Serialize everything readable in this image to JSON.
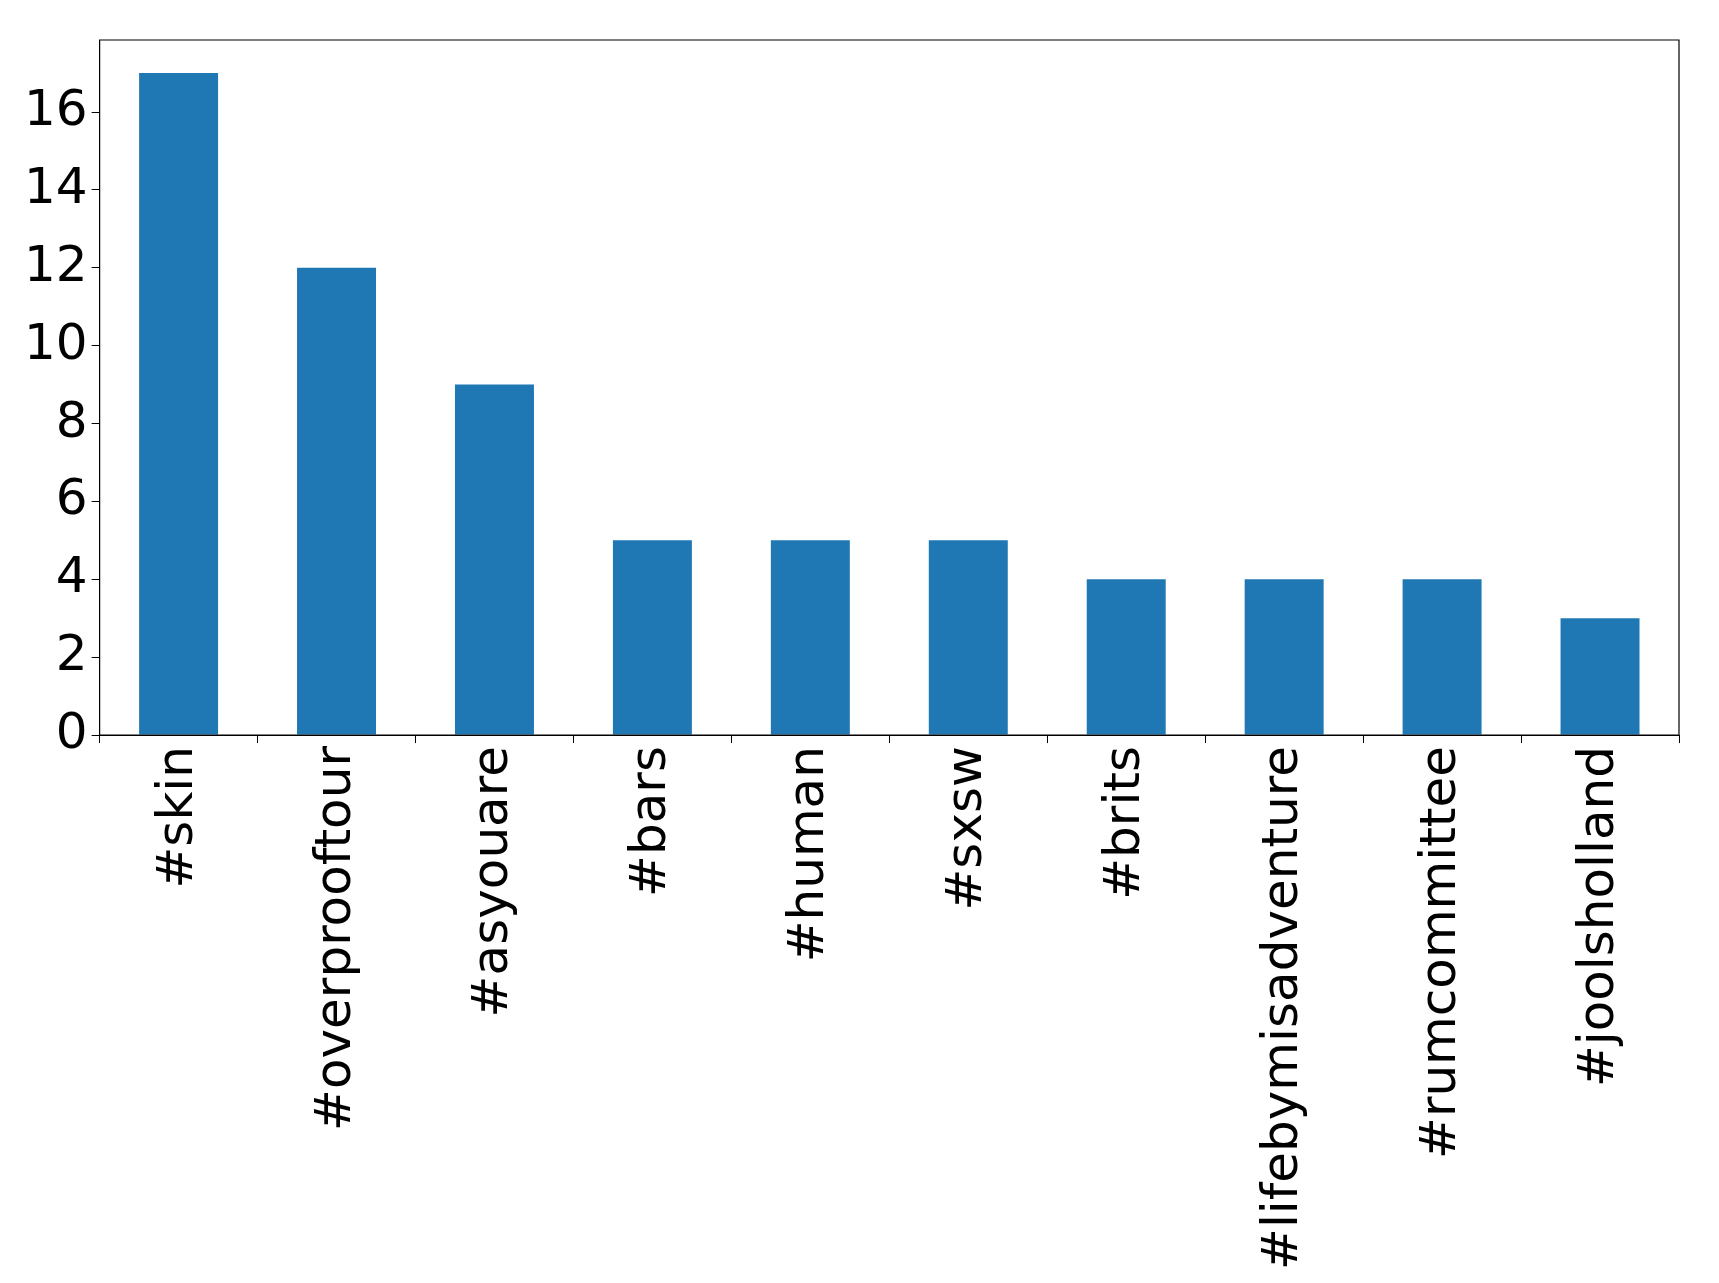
{
  "chart_data": {
    "type": "bar",
    "categories": [
      "#skin",
      "#overprooftour",
      "#asyouare",
      "#bars",
      "#human",
      "#sxsw",
      "#brits",
      "#lifebymisadventure",
      "#rumcommittee",
      "#joolsholland"
    ],
    "values": [
      17,
      12,
      9,
      5,
      5,
      5,
      4,
      4,
      4,
      3
    ],
    "color": "#1f77b4",
    "ylim": [
      0,
      17.85
    ],
    "yticks": [
      0,
      2,
      4,
      6,
      8,
      10,
      12,
      14,
      16
    ],
    "grid": false,
    "legend": false
  }
}
